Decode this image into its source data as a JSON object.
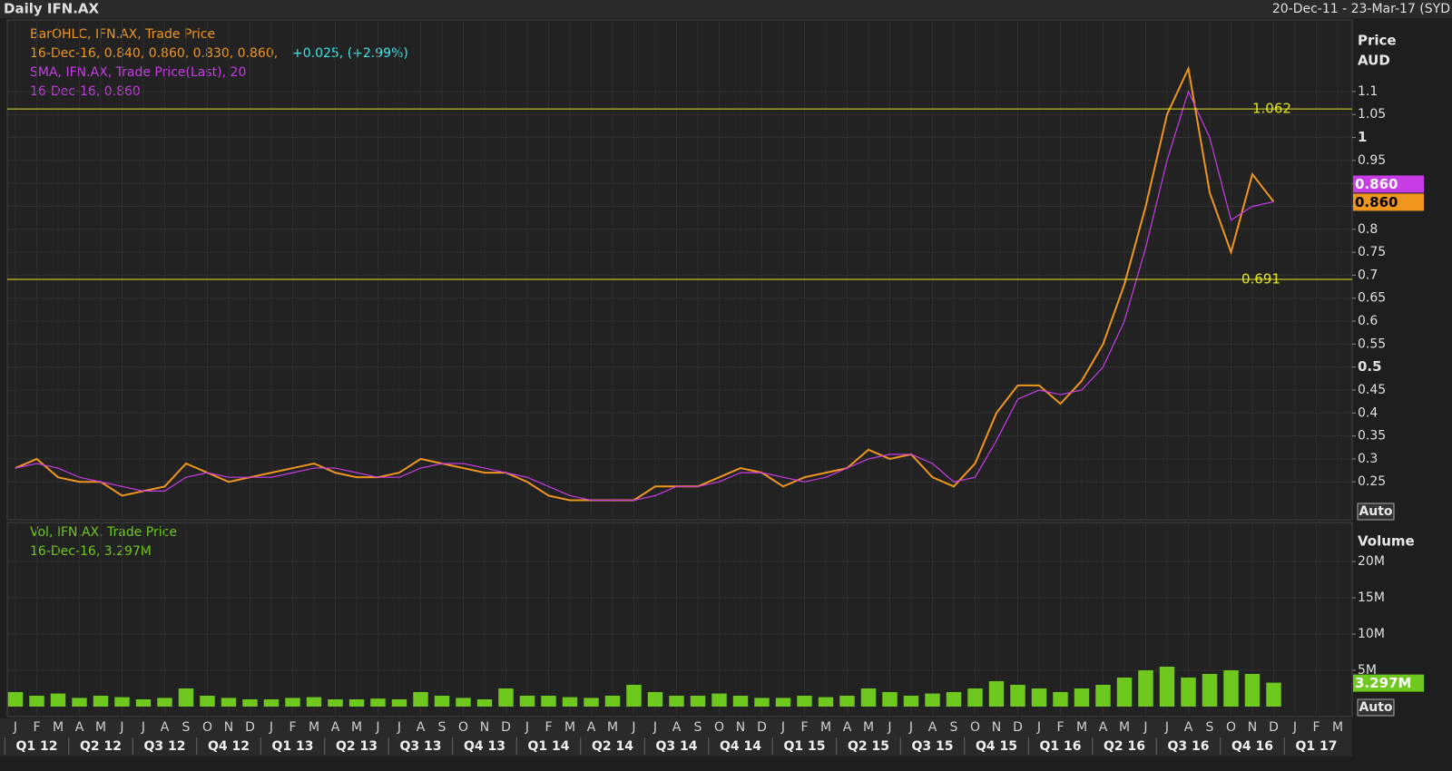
{
  "chart_data": [
    {
      "type": "line",
      "title": "Daily IFN.AX",
      "subtitle": "20-Dec-11 - 23-Mar-17 (SYD",
      "y_label": "Price",
      "y_unit": "AUD",
      "legend_lines": [
        "BarOHLC, IFN.AX, Trade Price",
        "16-Dec-16, 0.840, 0.860, 0.830, 0.860,",
        "+0.025, (+2.99%)",
        "SMA, IFN.AX, Trade Price(Last),  20",
        "16-Dec-16, 0.860"
      ],
      "categories": [
        "J",
        "F",
        "M",
        "A",
        "M",
        "J",
        "J",
        "A",
        "S",
        "O",
        "N",
        "D",
        "J",
        "F",
        "M",
        "A",
        "M",
        "J",
        "J",
        "A",
        "S",
        "O",
        "N",
        "D",
        "J",
        "F",
        "M",
        "A",
        "M",
        "J",
        "J",
        "A",
        "S",
        "O",
        "N",
        "D",
        "J",
        "F",
        "M",
        "A",
        "M",
        "J",
        "J",
        "A",
        "S",
        "O",
        "N",
        "D",
        "J",
        "F",
        "M",
        "A",
        "M",
        "J",
        "J",
        "A",
        "S",
        "O",
        "N",
        "D",
        "J",
        "F",
        "M"
      ],
      "quarters": [
        "Q1 12",
        "Q2 12",
        "Q3 12",
        "Q4 12",
        "Q1 13",
        "Q2 13",
        "Q3 13",
        "Q4 13",
        "Q1 14",
        "Q2 14",
        "Q3 14",
        "Q4 14",
        "Q1 15",
        "Q2 15",
        "Q3 15",
        "Q4 15",
        "Q1 16",
        "Q2 16",
        "Q3 16",
        "Q4 16",
        "Q1 17"
      ],
      "series": [
        {
          "name": "Trade Price",
          "color": "#f0961e",
          "last_value": 0.86,
          "last_value_label": "0.860",
          "values": [
            0.28,
            0.3,
            0.26,
            0.25,
            0.25,
            0.22,
            0.23,
            0.24,
            0.29,
            0.27,
            0.25,
            0.26,
            0.27,
            0.28,
            0.29,
            0.27,
            0.26,
            0.26,
            0.27,
            0.3,
            0.29,
            0.28,
            0.27,
            0.27,
            0.25,
            0.22,
            0.21,
            0.21,
            0.21,
            0.21,
            0.24,
            0.24,
            0.24,
            0.26,
            0.28,
            0.27,
            0.24,
            0.26,
            0.27,
            0.28,
            0.32,
            0.3,
            0.31,
            0.26,
            0.24,
            0.29,
            0.4,
            0.46,
            0.46,
            0.42,
            0.47,
            0.55,
            0.68,
            0.85,
            1.05,
            1.15,
            0.88,
            0.75,
            0.92,
            0.86,
            null,
            null,
            null
          ]
        },
        {
          "name": "SMA",
          "color": "#c83ce6",
          "last_value": 0.86,
          "last_value_label": "0.860",
          "values": [
            0.28,
            0.29,
            0.28,
            0.26,
            0.25,
            0.24,
            0.23,
            0.23,
            0.26,
            0.27,
            0.26,
            0.26,
            0.26,
            0.27,
            0.28,
            0.28,
            0.27,
            0.26,
            0.26,
            0.28,
            0.29,
            0.29,
            0.28,
            0.27,
            0.26,
            0.24,
            0.22,
            0.21,
            0.21,
            0.21,
            0.22,
            0.24,
            0.24,
            0.25,
            0.27,
            0.27,
            0.26,
            0.25,
            0.26,
            0.28,
            0.3,
            0.31,
            0.31,
            0.29,
            0.25,
            0.26,
            0.34,
            0.43,
            0.45,
            0.44,
            0.45,
            0.5,
            0.6,
            0.76,
            0.95,
            1.1,
            1.0,
            0.82,
            0.85,
            0.86,
            null,
            null,
            null
          ]
        }
      ],
      "hlines": [
        1.062,
        0.691
      ],
      "hline_color": "#e6e61e",
      "ylim": [
        0.1675,
        1.25
      ],
      "yticks": [
        0.25,
        0.3,
        0.35,
        0.4,
        0.45,
        0.5,
        0.55,
        0.6,
        0.65,
        0.7,
        0.75,
        0.8,
        0.85,
        0.9,
        0.95,
        1,
        1.05,
        1.1
      ],
      "scale_button": "Auto",
      "grid": true
    },
    {
      "type": "bar",
      "legend_lines": [
        "Vol, IFN.AX, Trade Price",
        "16-Dec-16, 3.297M"
      ],
      "y_label": "Volume",
      "color": "#6ec81e",
      "values": [
        2000000,
        1500000,
        1800000,
        1200000,
        1500000,
        1300000,
        1000000,
        1200000,
        2500000,
        1500000,
        1200000,
        1000000,
        1000000,
        1200000,
        1300000,
        1000000,
        1000000,
        1100000,
        1000000,
        2000000,
        1500000,
        1200000,
        1000000,
        2500000,
        1500000,
        1500000,
        1300000,
        1200000,
        1500000,
        3000000,
        2000000,
        1500000,
        1500000,
        1800000,
        1500000,
        1200000,
        1200000,
        1500000,
        1300000,
        1500000,
        2500000,
        2000000,
        1500000,
        1800000,
        2000000,
        2500000,
        3500000,
        3000000,
        2500000,
        2000000,
        2500000,
        3000000,
        4000000,
        5000000,
        5500000,
        4000000,
        4500000,
        5000000,
        4500000,
        3297000,
        null,
        null,
        null
      ],
      "last_value": 3297000,
      "last_value_label": "3.297M",
      "ylim": [
        0,
        25125000
      ],
      "yticks": [
        {
          "value": 5000000,
          "label": "5M"
        },
        {
          "value": 10000000,
          "label": "10M"
        },
        {
          "value": 15000000,
          "label": "15M"
        },
        {
          "value": 20000000,
          "label": "20M"
        }
      ],
      "scale_button": "Auto",
      "grid": true
    }
  ]
}
